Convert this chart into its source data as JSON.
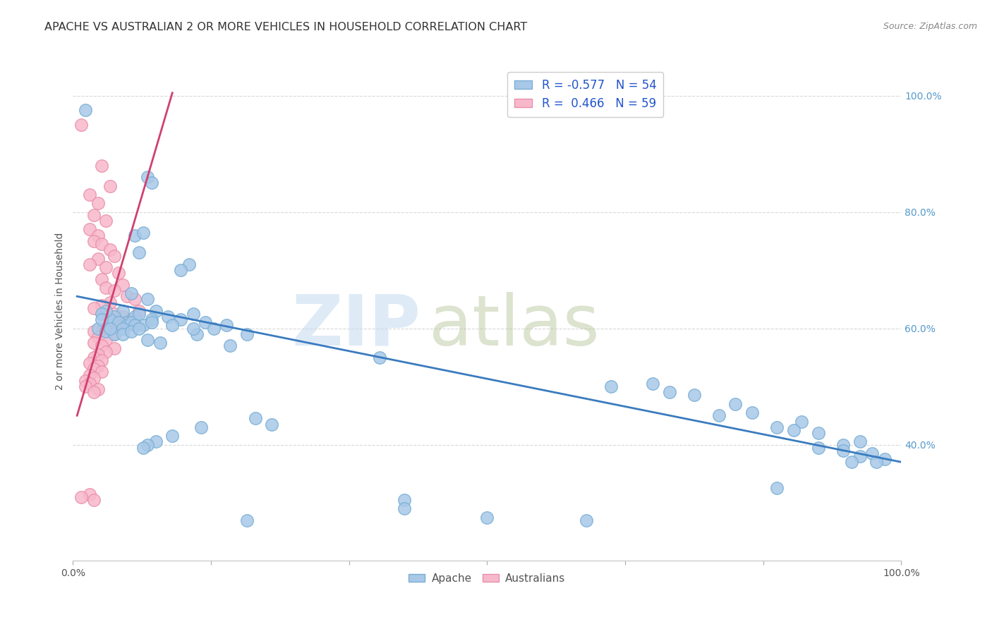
{
  "title": "APACHE VS AUSTRALIAN 2 OR MORE VEHICLES IN HOUSEHOLD CORRELATION CHART",
  "source": "Source: ZipAtlas.com",
  "ylabel": "2 or more Vehicles in Household",
  "watermark_zip": "ZIP",
  "watermark_atlas": "atlas",
  "apache_scatter": [
    [
      1.5,
      97.5
    ],
    [
      9.0,
      86.0
    ],
    [
      9.5,
      85.0
    ],
    [
      7.5,
      76.0
    ],
    [
      8.5,
      76.5
    ],
    [
      8.0,
      73.0
    ],
    [
      14.0,
      71.0
    ],
    [
      13.0,
      70.0
    ],
    [
      7.0,
      66.0
    ],
    [
      9.0,
      65.0
    ],
    [
      6.0,
      63.0
    ],
    [
      7.5,
      62.0
    ],
    [
      6.5,
      61.0
    ],
    [
      8.5,
      60.5
    ],
    [
      10.0,
      63.0
    ],
    [
      11.5,
      62.0
    ],
    [
      13.0,
      61.5
    ],
    [
      14.5,
      62.5
    ],
    [
      16.0,
      61.0
    ],
    [
      17.0,
      60.0
    ],
    [
      18.5,
      60.5
    ],
    [
      5.0,
      62.0
    ],
    [
      4.5,
      61.5
    ],
    [
      4.0,
      63.0
    ],
    [
      3.5,
      62.5
    ],
    [
      5.5,
      61.0
    ],
    [
      6.5,
      60.5
    ],
    [
      7.0,
      61.0
    ],
    [
      8.0,
      62.5
    ],
    [
      9.5,
      61.5
    ],
    [
      3.0,
      60.0
    ],
    [
      4.0,
      59.5
    ],
    [
      5.0,
      59.0
    ],
    [
      3.5,
      61.5
    ],
    [
      4.5,
      60.0
    ],
    [
      6.0,
      60.0
    ],
    [
      7.5,
      60.5
    ],
    [
      6.0,
      59.0
    ],
    [
      7.0,
      59.5
    ],
    [
      8.0,
      60.0
    ],
    [
      9.5,
      61.0
    ],
    [
      12.0,
      60.5
    ],
    [
      15.0,
      59.0
    ],
    [
      14.5,
      60.0
    ],
    [
      9.0,
      58.0
    ],
    [
      10.5,
      57.5
    ],
    [
      19.0,
      57.0
    ],
    [
      21.0,
      59.0
    ],
    [
      15.5,
      43.0
    ],
    [
      12.0,
      41.5
    ],
    [
      10.0,
      40.5
    ],
    [
      9.0,
      40.0
    ],
    [
      8.5,
      39.5
    ],
    [
      37.0,
      55.0
    ],
    [
      65.0,
      50.0
    ],
    [
      70.0,
      50.5
    ],
    [
      72.0,
      49.0
    ],
    [
      75.0,
      48.5
    ],
    [
      80.0,
      47.0
    ],
    [
      78.0,
      45.0
    ],
    [
      82.0,
      45.5
    ],
    [
      88.0,
      44.0
    ],
    [
      85.0,
      43.0
    ],
    [
      90.0,
      42.0
    ],
    [
      87.0,
      42.5
    ],
    [
      93.0,
      40.0
    ],
    [
      95.0,
      40.5
    ],
    [
      90.0,
      39.5
    ],
    [
      93.0,
      39.0
    ],
    [
      95.0,
      38.0
    ],
    [
      96.5,
      38.5
    ],
    [
      98.0,
      37.5
    ],
    [
      94.0,
      37.0
    ],
    [
      97.0,
      37.0
    ],
    [
      40.0,
      30.5
    ],
    [
      40.0,
      29.0
    ],
    [
      50.0,
      27.5
    ],
    [
      62.0,
      27.0
    ],
    [
      85.0,
      32.5
    ],
    [
      21.0,
      27.0
    ],
    [
      22.0,
      44.5
    ],
    [
      24.0,
      43.5
    ]
  ],
  "australian_scatter": [
    [
      1.0,
      95.0
    ],
    [
      3.5,
      88.0
    ],
    [
      4.5,
      84.5
    ],
    [
      2.0,
      83.0
    ],
    [
      3.0,
      81.5
    ],
    [
      2.5,
      79.5
    ],
    [
      4.0,
      78.5
    ],
    [
      2.0,
      77.0
    ],
    [
      3.0,
      76.0
    ],
    [
      2.5,
      75.0
    ],
    [
      3.5,
      74.5
    ],
    [
      4.5,
      73.5
    ],
    [
      5.0,
      72.5
    ],
    [
      3.0,
      72.0
    ],
    [
      2.0,
      71.0
    ],
    [
      4.0,
      70.5
    ],
    [
      5.5,
      69.5
    ],
    [
      3.5,
      68.5
    ],
    [
      6.0,
      67.5
    ],
    [
      4.0,
      67.0
    ],
    [
      5.0,
      66.5
    ],
    [
      6.5,
      65.5
    ],
    [
      7.5,
      65.0
    ],
    [
      4.5,
      64.5
    ],
    [
      3.5,
      64.0
    ],
    [
      2.5,
      63.5
    ],
    [
      8.0,
      63.0
    ],
    [
      6.0,
      62.0
    ],
    [
      5.0,
      62.5
    ],
    [
      7.0,
      61.5
    ],
    [
      6.0,
      61.0
    ],
    [
      5.5,
      60.5
    ],
    [
      4.0,
      60.0
    ],
    [
      3.5,
      59.5
    ],
    [
      5.0,
      59.0
    ],
    [
      2.5,
      59.5
    ],
    [
      3.0,
      58.5
    ],
    [
      4.0,
      58.0
    ],
    [
      2.5,
      57.5
    ],
    [
      3.5,
      57.0
    ],
    [
      5.0,
      56.5
    ],
    [
      4.0,
      56.0
    ],
    [
      3.0,
      55.5
    ],
    [
      2.5,
      55.0
    ],
    [
      3.5,
      54.5
    ],
    [
      2.0,
      54.0
    ],
    [
      3.0,
      53.5
    ],
    [
      2.5,
      53.0
    ],
    [
      3.5,
      52.5
    ],
    [
      2.0,
      52.0
    ],
    [
      2.5,
      51.5
    ],
    [
      1.5,
      51.0
    ],
    [
      2.0,
      50.5
    ],
    [
      1.5,
      50.0
    ],
    [
      3.0,
      49.5
    ],
    [
      2.5,
      49.0
    ],
    [
      2.0,
      31.5
    ],
    [
      2.5,
      30.5
    ],
    [
      1.0,
      31.0
    ]
  ],
  "apache_line": {
    "x0": 0.5,
    "x1": 100.0,
    "y0": 65.5,
    "y1": 37.0
  },
  "australian_line": {
    "x0": 0.5,
    "x1": 12.0,
    "y0": 45.0,
    "y1": 100.5
  },
  "apache_color": "#a8c8e8",
  "apache_edge_color": "#7aafd4",
  "australian_color": "#f8b8cc",
  "australian_edge_color": "#e890aa",
  "apache_line_color": "#3a7bbf",
  "australian_line_color": "#d04070",
  "bg_color": "#ffffff",
  "grid_color": "#d8d8d8",
  "xlim": [
    0,
    100
  ],
  "ylim": [
    20,
    106
  ],
  "yticks": [
    40,
    60,
    80,
    100
  ],
  "ytick_labels": [
    "40.0%",
    "60.0%",
    "80.0%",
    "100.0%"
  ],
  "title_fontsize": 11.5,
  "source_fontsize": 9,
  "tick_fontsize": 10,
  "ylabel_fontsize": 10
}
